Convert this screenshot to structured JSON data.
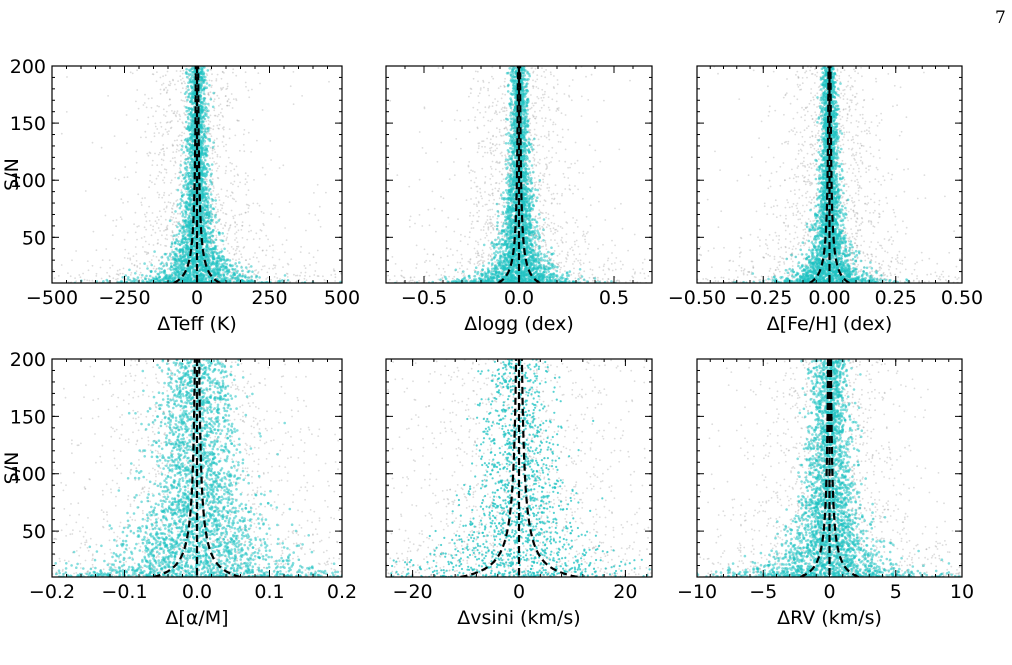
{
  "page_number": "7",
  "colors": {
    "scatter_all": "#9a9a9a",
    "scatter_selected": "#1fc3c3",
    "curve": "#000000"
  },
  "chart_data": [
    {
      "type": "scatter",
      "panel": "teff",
      "xlabel": "ΔTeff (K)",
      "ylabel": "S/N",
      "xlim": [
        -500,
        500
      ],
      "ylim": [
        10,
        200
      ],
      "xticks": [
        -500,
        -250,
        0,
        250,
        500
      ],
      "xtick_labels": [
        "−500",
        "−250",
        "0",
        "250",
        "500"
      ],
      "yticks": [
        50,
        100,
        150,
        200
      ],
      "ytick_labels": [
        "50",
        "100",
        "150",
        "200"
      ],
      "selected_sigma": {
        "floor": 8,
        "scale": 1400
      },
      "all_sigma": {
        "floor": 60,
        "scale": 3000
      },
      "curve_k": 800,
      "legend": "none",
      "grid": false
    },
    {
      "type": "scatter",
      "panel": "logg",
      "xlabel": "Δlogg (dex)",
      "ylabel": "",
      "xlim": [
        -0.7,
        0.7
      ],
      "ylim": [
        10,
        200
      ],
      "xticks": [
        -0.5,
        0.0,
        0.5
      ],
      "xtick_labels": [
        "−0.5",
        "0.0",
        "0.5"
      ],
      "yticks": [
        50,
        100,
        150,
        200
      ],
      "ytick_labels": [],
      "selected_sigma": {
        "floor": 0.012,
        "scale": 1.9
      },
      "all_sigma": {
        "floor": 0.09,
        "scale": 4.0
      },
      "curve_k": 1.1,
      "legend": "none",
      "grid": false
    },
    {
      "type": "scatter",
      "panel": "feh",
      "xlabel": "Δ[Fe/H] (dex)",
      "ylabel": "",
      "xlim": [
        -0.5,
        0.5
      ],
      "ylim": [
        10,
        200
      ],
      "xticks": [
        -0.5,
        -0.25,
        0.0,
        0.25,
        0.5
      ],
      "xtick_labels": [
        "−0.50",
        "−0.25",
        "0.00",
        "0.25",
        "0.50"
      ],
      "yticks": [
        50,
        100,
        150,
        200
      ],
      "ytick_labels": [],
      "selected_sigma": {
        "floor": 0.007,
        "scale": 1.25
      },
      "all_sigma": {
        "floor": 0.06,
        "scale": 2.8
      },
      "curve_k": 0.75,
      "legend": "none",
      "grid": false
    },
    {
      "type": "scatter",
      "panel": "alpha",
      "xlabel": "Δ[α/M]",
      "ylabel": "S/N",
      "xlim": [
        -0.2,
        0.2
      ],
      "ylim": [
        10,
        200
      ],
      "xticks": [
        -0.2,
        -0.1,
        0.0,
        0.1,
        0.2
      ],
      "xtick_labels": [
        "−0.2",
        "−0.1",
        "0.0",
        "0.1",
        "0.2"
      ],
      "yticks": [
        50,
        100,
        150,
        200
      ],
      "ytick_labels": [
        "50",
        "100",
        "150",
        "200"
      ],
      "selected_sigma": {
        "floor": 0.018,
        "scale": 1.4
      },
      "all_sigma": {
        "floor": 0.05,
        "scale": 2.4
      },
      "curve_k": 0.6,
      "legend": "none",
      "grid": false
    },
    {
      "type": "scatter",
      "panel": "vsini",
      "xlabel": "Δvsini (km/s)",
      "ylabel": "",
      "xlim": [
        -25,
        25
      ],
      "ylim": [
        10,
        200
      ],
      "xticks": [
        -20,
        0,
        20
      ],
      "xtick_labels": [
        "−20",
        "0",
        "20"
      ],
      "yticks": [
        50,
        100,
        150,
        200
      ],
      "ytick_labels": [],
      "selected_sigma": {
        "floor": 2.5,
        "scale": 180
      },
      "all_sigma": {
        "floor": 8,
        "scale": 260
      },
      "curve_k": 110,
      "legend": "none",
      "grid": false
    },
    {
      "type": "scatter",
      "panel": "rv",
      "xlabel": "ΔRV (km/s)",
      "ylabel": "",
      "xlim": [
        -10,
        10
      ],
      "ylim": [
        10,
        200
      ],
      "xticks": [
        -10,
        -5,
        0,
        5,
        10
      ],
      "xtick_labels": [
        "−10",
        "−5",
        "0",
        "5",
        "10"
      ],
      "yticks": [
        50,
        100,
        150,
        200
      ],
      "ytick_labels": [],
      "selected_sigma": {
        "floor": 0.5,
        "scale": 45
      },
      "all_sigma": {
        "floor": 1.5,
        "scale": 110
      },
      "curve_k": 22,
      "legend": "none",
      "grid": false
    }
  ]
}
